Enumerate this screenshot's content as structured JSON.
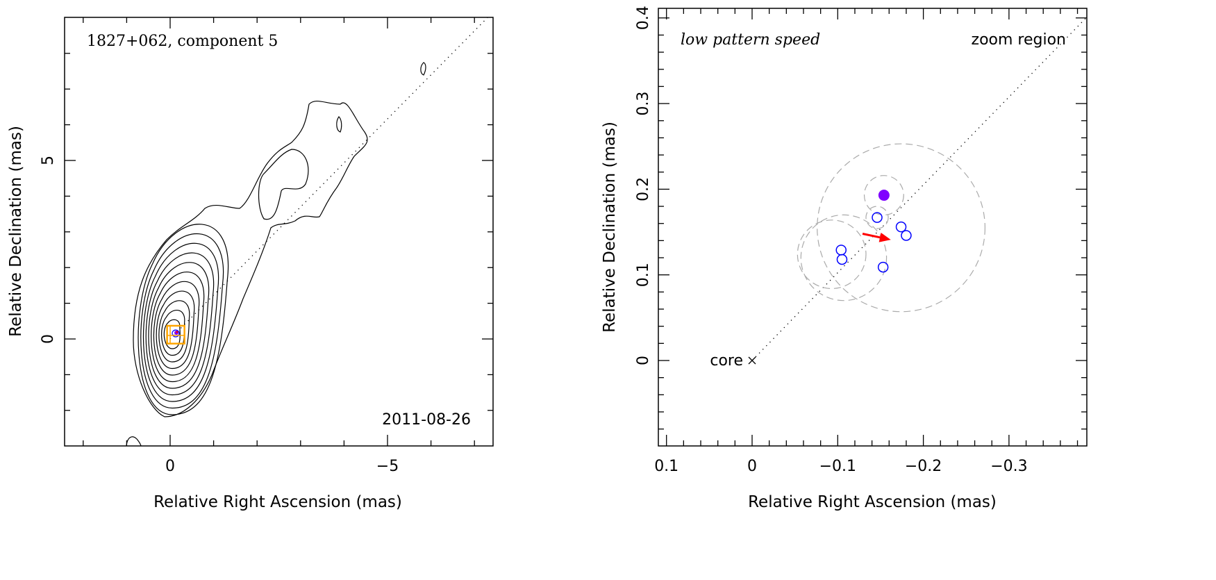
{
  "chart_data": [
    {
      "type": "contour",
      "title": "1827+062, component 5",
      "annotation": "2011-08-26",
      "xlabel": "Relative Right Ascension (mas)",
      "ylabel": "Relative Declination (mas)",
      "xlim": [
        2.4,
        -7.4
      ],
      "ylim": [
        -3.0,
        9.0
      ],
      "x_ticks": [
        0,
        -5
      ],
      "x_tick_labels": [
        "0",
        "−5"
      ],
      "y_ticks": [
        0,
        5
      ],
      "y_tick_labels": [
        "0",
        "5"
      ],
      "axis_line": {
        "from": [
          0,
          0
        ],
        "to": [
          -7.3,
          9.0
        ],
        "style": "dotted"
      },
      "zoom_box": {
        "x": [
          0.07,
          -0.33
        ],
        "y": [
          -0.13,
          0.37
        ],
        "color": "#FFA500"
      },
      "contour_color": "#000000"
    },
    {
      "type": "scatter",
      "title": "low pattern speed",
      "corner_label": "zoom region",
      "xlabel": "Relative Right Ascension (mas)",
      "ylabel": "Relative Declination (mas)",
      "xlim": [
        0.11,
        -0.39
      ],
      "ylim": [
        -0.1,
        0.41
      ],
      "x_ticks": [
        0.1,
        0,
        -0.1,
        -0.2,
        -0.3
      ],
      "x_tick_labels": [
        "0.1",
        "0",
        "−0.1",
        "−0.2",
        "−0.3"
      ],
      "y_ticks": [
        0,
        0.1,
        0.2,
        0.3,
        0.4
      ],
      "y_tick_labels": [
        "0",
        "0.1",
        "0.2",
        "0.3",
        "0.4"
      ],
      "core": {
        "x": 0,
        "y": 0,
        "label": "core"
      },
      "axis_line": {
        "from": [
          0,
          0
        ],
        "to": [
          -0.39,
          0.4
        ],
        "style": "dotted"
      },
      "highlighted_point": {
        "x": -0.154,
        "y": 0.193,
        "color": "#7F00FF"
      },
      "points": [
        {
          "x": -0.146,
          "y": 0.167
        },
        {
          "x": -0.174,
          "y": 0.156
        },
        {
          "x": -0.18,
          "y": 0.146
        },
        {
          "x": -0.104,
          "y": 0.129
        },
        {
          "x": -0.105,
          "y": 0.118
        },
        {
          "x": -0.153,
          "y": 0.109
        }
      ],
      "point_color": "#0000FF",
      "size_circles": [
        {
          "x": -0.174,
          "y": 0.155,
          "r": 0.098
        },
        {
          "x": -0.154,
          "y": 0.193,
          "r": 0.023
        },
        {
          "x": -0.146,
          "y": 0.167,
          "r": 0.013
        },
        {
          "x": -0.093,
          "y": 0.124,
          "r": 0.04
        },
        {
          "x": -0.107,
          "y": 0.12,
          "r": 0.05
        }
      ],
      "circle_color": "#AAAAAA",
      "arrow": {
        "from": [
          -0.129,
          0.148
        ],
        "to": [
          -0.162,
          0.141
        ],
        "color": "#FF0000"
      }
    }
  ]
}
